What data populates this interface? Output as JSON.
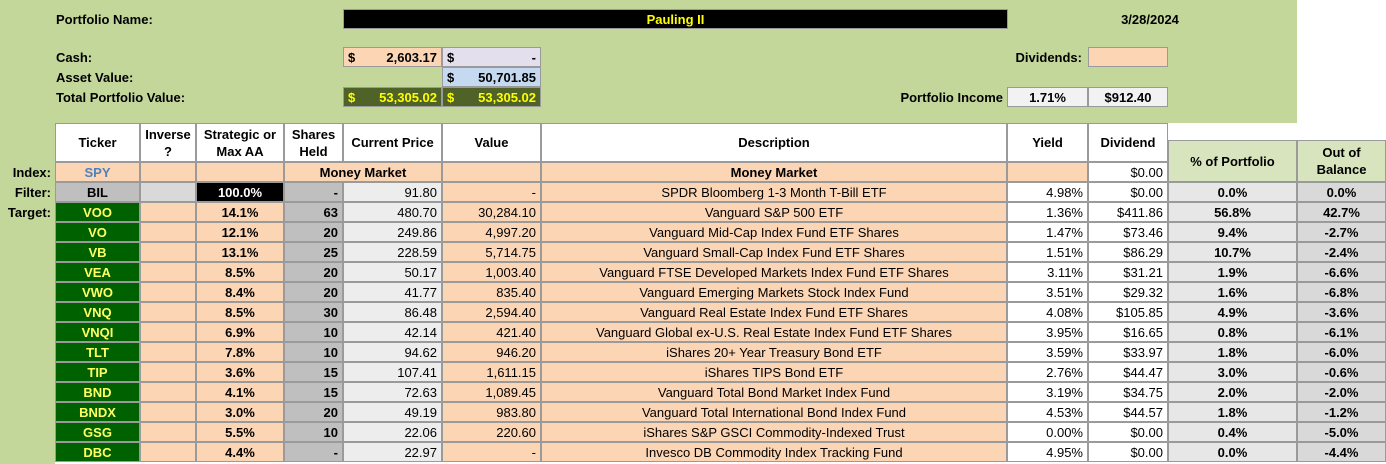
{
  "header": {
    "portfolio_name_label": "Portfolio Name:",
    "portfolio_name": "Pauling II",
    "date": "3/28/2024",
    "currency": "$",
    "dash": "-",
    "cash_label": "Cash:",
    "cash": "2,603.17",
    "asset_value_label": "Asset Value:",
    "asset_value": "50,701.85",
    "total_label": "Total Portfolio Value:",
    "total": "53,305.02",
    "total_2": "53,305.02",
    "dividends_label": "Dividends:",
    "income_label": "Portfolio Income",
    "income_yield": "1.71%",
    "income": "$912.40"
  },
  "table": {
    "columns": [
      "Ticker",
      "Inverse ?",
      "Strategic or Max AA",
      "Shares Held",
      "Current Price",
      "Value",
      "Description",
      "Yield",
      "Dividend",
      "% of Portfolio",
      "Out of Balance"
    ],
    "rows": [
      {
        "label": "Index:",
        "ticker": "SPY",
        "money_market": "Money Market",
        "description": "Money Market",
        "dividend": "$0.00"
      },
      {
        "label": "Filter:",
        "ticker": "BIL",
        "strategic": "100.0%",
        "shares": "-",
        "price": "91.80",
        "value": "-",
        "description": "SPDR Bloomberg 1-3 Month T-Bill ETF",
        "yield": "4.98%",
        "dividend": "$0.00",
        "pct": "0.0%",
        "oob": "0.0%"
      },
      {
        "label": "Target:",
        "ticker": "VOO",
        "strategic": "14.1%",
        "shares": "63",
        "price": "480.70",
        "value": "30,284.10",
        "description": "Vanguard S&P 500 ETF",
        "yield": "1.36%",
        "dividend": "$411.86",
        "pct": "56.8%",
        "oob": "42.7%"
      },
      {
        "ticker": "VO",
        "strategic": "12.1%",
        "shares": "20",
        "price": "249.86",
        "value": "4,997.20",
        "description": "Vanguard Mid-Cap Index Fund ETF Shares",
        "yield": "1.47%",
        "dividend": "$73.46",
        "pct": "9.4%",
        "oob": "-2.7%"
      },
      {
        "ticker": "VB",
        "strategic": "13.1%",
        "shares": "25",
        "price": "228.59",
        "value": "5,714.75",
        "description": "Vanguard Small-Cap Index Fund ETF Shares",
        "yield": "1.51%",
        "dividend": "$86.29",
        "pct": "10.7%",
        "oob": "-2.4%"
      },
      {
        "ticker": "VEA",
        "strategic": "8.5%",
        "shares": "20",
        "price": "50.17",
        "value": "1,003.40",
        "description": "Vanguard FTSE Developed Markets Index Fund ETF Shares",
        "yield": "3.11%",
        "dividend": "$31.21",
        "pct": "1.9%",
        "oob": "-6.6%"
      },
      {
        "ticker": "VWO",
        "strategic": "8.4%",
        "shares": "20",
        "price": "41.77",
        "value": "835.40",
        "description": "Vanguard Emerging Markets Stock Index Fund",
        "yield": "3.51%",
        "dividend": "$29.32",
        "pct": "1.6%",
        "oob": "-6.8%"
      },
      {
        "ticker": "VNQ",
        "strategic": "8.5%",
        "shares": "30",
        "price": "86.48",
        "value": "2,594.40",
        "description": "Vanguard Real Estate Index Fund ETF Shares",
        "yield": "4.08%",
        "dividend": "$105.85",
        "pct": "4.9%",
        "oob": "-3.6%"
      },
      {
        "ticker": "VNQI",
        "strategic": "6.9%",
        "shares": "10",
        "price": "42.14",
        "value": "421.40",
        "description": "Vanguard Global ex-U.S. Real Estate Index Fund ETF Shares",
        "yield": "3.95%",
        "dividend": "$16.65",
        "pct": "0.8%",
        "oob": "-6.1%"
      },
      {
        "ticker": "TLT",
        "strategic": "7.8%",
        "shares": "10",
        "price": "94.62",
        "value": "946.20",
        "description": "iShares 20+ Year Treasury Bond ETF",
        "yield": "3.59%",
        "dividend": "$33.97",
        "pct": "1.8%",
        "oob": "-6.0%"
      },
      {
        "ticker": "TIP",
        "strategic": "3.6%",
        "shares": "15",
        "price": "107.41",
        "value": "1,611.15",
        "description": "iShares TIPS Bond ETF",
        "yield": "2.76%",
        "dividend": "$44.47",
        "pct": "3.0%",
        "oob": "-0.6%"
      },
      {
        "ticker": "BND",
        "strategic": "4.1%",
        "shares": "15",
        "price": "72.63",
        "value": "1,089.45",
        "description": "Vanguard Total Bond Market Index Fund",
        "yield": "3.19%",
        "dividend": "$34.75",
        "pct": "2.0%",
        "oob": "-2.0%"
      },
      {
        "ticker": "BNDX",
        "strategic": "3.0%",
        "shares": "20",
        "price": "49.19",
        "value": "983.80",
        "description": "Vanguard Total International Bond Index Fund",
        "yield": "4.53%",
        "dividend": "$44.57",
        "pct": "1.8%",
        "oob": "-1.2%"
      },
      {
        "ticker": "GSG",
        "strategic": "5.5%",
        "shares": "10",
        "price": "22.06",
        "value": "220.60",
        "description": "iShares S&P GSCI Commodity-Indexed Trust",
        "yield": "0.00%",
        "dividend": "$0.00",
        "pct": "0.4%",
        "oob": "-5.0%"
      },
      {
        "ticker": "DBC",
        "strategic": "4.4%",
        "shares": "-",
        "price": "22.97",
        "value": "-",
        "description": "Invesco DB Commodity Index Tracking Fund",
        "yield": "4.95%",
        "dividend": "$0.00",
        "pct": "0.0%",
        "oob": "-4.4%"
      }
    ]
  }
}
